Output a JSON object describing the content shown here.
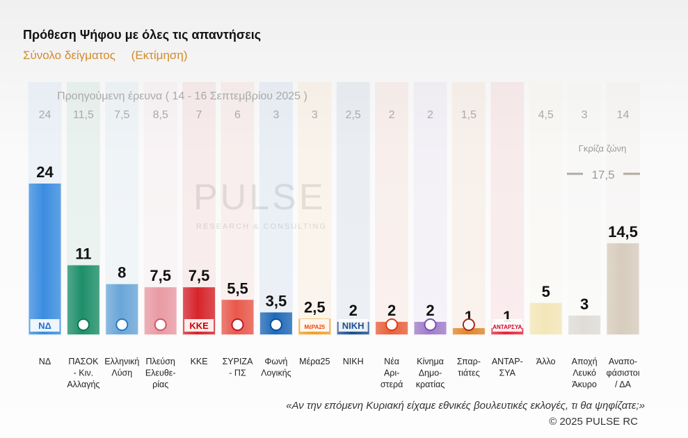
{
  "header": {
    "title": "Πρόθεση Ψήφου με όλες τις απαντήσεις",
    "subtitle_left": "Σύνολο δείγματος",
    "subtitle_right": "(Εκτίμηση)"
  },
  "footer": {
    "question": "«Αν την επόμενη Κυριακή είχαμε εθνικές βουλευτικές εκλογές, τι θα ψηφίζατε;»",
    "copyright": "©  2025  PULSE RC"
  },
  "watermark": {
    "main": "PULSE",
    "sub": "RESEARCH & CONSULTING"
  },
  "colors": {
    "prev_value_text": "#a9a9a9",
    "value_text": "#111111"
  },
  "chart_data": {
    "type": "bar",
    "title": "Πρόθεση Ψήφου με όλες τις απαντήσεις",
    "previous_label": "Προηγούμενη έρευνα ( 14 - 16 Σεπτεμβρίου 2025 )",
    "grey_zone_label": "Γκρίζα ζώνη",
    "grey_zone_value": "17,5",
    "ylim": [
      0,
      24
    ],
    "categories": [
      {
        "lines": [
          "ΝΔ"
        ],
        "value": 24,
        "label": "24",
        "prev": "24",
        "color": "#3b8de0",
        "logo": "ΝΔ",
        "logo_color": "#1f6fd0"
      },
      {
        "lines": [
          "ΠΑΣΟΚ",
          "- Κιν.",
          "Αλλαγής"
        ],
        "value": 11,
        "label": "11",
        "prev": "11,5",
        "color": "#1e8f6a",
        "logo": "",
        "logo_color": "#0c7a4f"
      },
      {
        "lines": [
          "Ελληνική",
          "Λύση"
        ],
        "value": 8,
        "label": "8",
        "prev": "7,5",
        "color": "#6aa6d8",
        "logo": "",
        "logo_color": "#2a78c0"
      },
      {
        "lines": [
          "Πλεύση",
          "Ελευθε-",
          "ρίας"
        ],
        "value": 7.5,
        "label": "7,5",
        "prev": "8,5",
        "color": "#e99aa3",
        "logo": "",
        "logo_color": "#d0566a"
      },
      {
        "lines": [
          "ΚΚΕ"
        ],
        "value": 7.5,
        "label": "7,5",
        "prev": "7",
        "color": "#d6242c",
        "logo": "ΚΚΕ",
        "logo_color": "#c00"
      },
      {
        "lines": [
          "ΣΥΡΙΖΑ",
          "- ΠΣ"
        ],
        "value": 5.5,
        "label": "5,5",
        "prev": "6",
        "color": "#e8594b",
        "logo": "",
        "logo_color": "#c0162a"
      },
      {
        "lines": [
          "Φωνή",
          "Λογικής"
        ],
        "value": 3.5,
        "label": "3,5",
        "prev": "3",
        "color": "#1f69b8",
        "logo": "",
        "logo_color": "#0d4f9a"
      },
      {
        "lines": [
          "Μέρα25"
        ],
        "value": 2.5,
        "label": "2,5",
        "prev": "3",
        "color": "#f0a12a",
        "logo": "ΜέΡΑ25",
        "logo_color": "#e8480c"
      },
      {
        "lines": [
          "ΝΙΚΗ"
        ],
        "value": 2,
        "label": "2",
        "prev": "2,5",
        "color": "#1e4f90",
        "logo": "ΝΙΚΗ",
        "logo_color": "#1e4f90"
      },
      {
        "lines": [
          "Νέα",
          "Αρι-",
          "στερά"
        ],
        "value": 2,
        "label": "2",
        "prev": "2",
        "color": "#e8603a",
        "logo": "",
        "logo_color": "#d84315"
      },
      {
        "lines": [
          "Κίνημα",
          "Δημο-",
          "κρατίας"
        ],
        "value": 2,
        "label": "2",
        "prev": "2",
        "color": "#a07cc8",
        "logo": "",
        "logo_color": "#7b4fb0"
      },
      {
        "lines": [
          "Σπαρ-",
          "τιάτες"
        ],
        "value": 1,
        "label": "1",
        "prev": "1,5",
        "color": "#e0852a",
        "logo": "",
        "logo_color": "#a4281b"
      },
      {
        "lines": [
          "ΑΝΤΑΡ-",
          "ΣΥΑ"
        ],
        "value": 1,
        "label": "1",
        "prev": "",
        "color": "#e02a3c",
        "logo": "ΑΝΤΑΡΣΥΑ",
        "logo_color": "#d00020"
      },
      {
        "lines": [
          "Άλλο"
        ],
        "value": 5,
        "label": "5",
        "prev": "4,5",
        "color": "#f3e6b8",
        "logo": "",
        "logo_color": ""
      },
      {
        "lines": [
          "Αποχή",
          "Λευκό",
          "Άκυρο"
        ],
        "value": 3,
        "label": "3",
        "prev": "3",
        "color": "#dfdcd6",
        "logo": "",
        "logo_color": ""
      },
      {
        "lines": [
          "Αναπο-",
          "φάσιστοι",
          "/ ΔΑ"
        ],
        "value": 14.5,
        "label": "14,5",
        "prev": "14",
        "color": "#d7ccbd",
        "logo": "",
        "logo_color": ""
      }
    ]
  }
}
